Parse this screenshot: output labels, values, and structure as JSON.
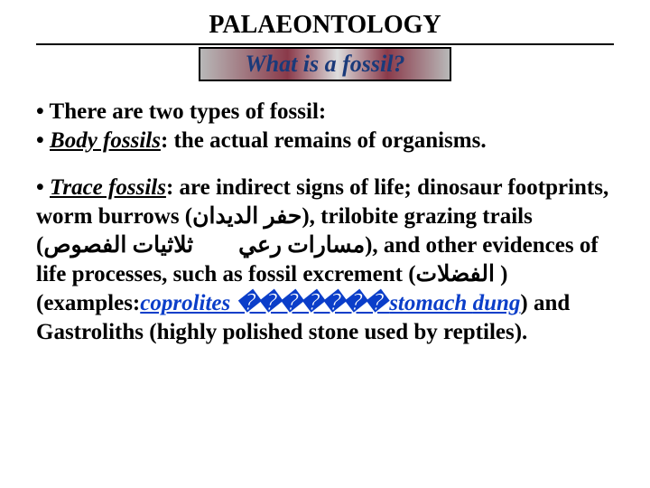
{
  "title": "PALAEONTOLOGY",
  "subtitle": "What is a fossil?",
  "line_intro": "• There are two types of  fossil:",
  "body_label": "Body fossils",
  "body_text": ": the actual remains of organisms.",
  "trace_label": "Trace fossils",
  "trace_text_1": ": are indirect signs of life; dinosaur footprints, worm burrows (",
  "arabic_1": "حفر الديدان",
  "trace_text_2": "), trilobite grazing trails (",
  "arabic_2a": "مسارات رعي",
  "arabic_2b": "ثلاثيات الفصوص",
  "trace_text_3": "), and other evidences of life processes, such as fossil excrement (",
  "arabic_3": "الفضلات",
  "trace_text_4": "       ) (examples:",
  "coprolites": "coprolites ",
  "placeholder": "������� ",
  "stomach": "stomach ",
  "dung": "dung",
  "trace_text_5": ") and Gastroliths (highly polished stone used by reptiles).",
  "colors": {
    "title_color": "#000000",
    "subtitle_color": "#1a3a7a",
    "link_color": "#0b3ec9",
    "text_color": "#000000",
    "border_color": "#000000"
  }
}
